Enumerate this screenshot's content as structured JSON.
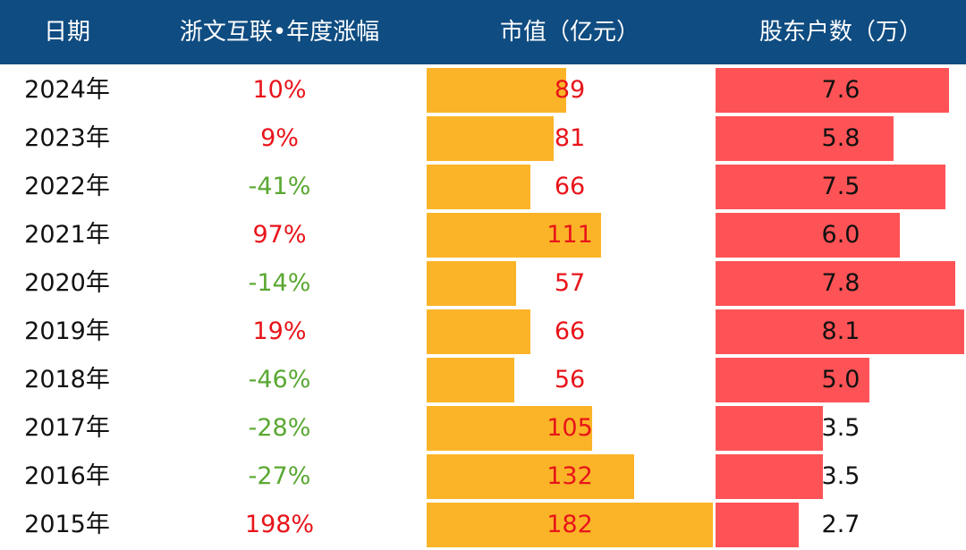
{
  "header": {
    "date": "日期",
    "pct": "浙文互联•年度涨幅",
    "cap": "市值（亿元）",
    "holders": "股东户数（万）"
  },
  "colors": {
    "header_bg": "#0f4c81",
    "cap_bar": "#fbb427",
    "holders_bar": "#fe5356",
    "up": "#e8141a",
    "down": "#5aa832"
  },
  "chart_data": {
    "type": "table",
    "columns": [
      "日期",
      "浙文互联•年度涨幅",
      "市值（亿元）",
      "股东户数（万）"
    ],
    "rows": [
      {
        "date": "2024年",
        "pct": "10%",
        "cap": 89,
        "holders": 7.6
      },
      {
        "date": "2023年",
        "pct": "9%",
        "cap": 81,
        "holders": 5.8
      },
      {
        "date": "2022年",
        "pct": "-41%",
        "cap": 66,
        "holders": 7.5
      },
      {
        "date": "2021年",
        "pct": "97%",
        "cap": 111,
        "holders": 6.0
      },
      {
        "date": "2020年",
        "pct": "-14%",
        "cap": 57,
        "holders": 7.8
      },
      {
        "date": "2019年",
        "pct": "19%",
        "cap": 66,
        "holders": 8.1
      },
      {
        "date": "2018年",
        "pct": "-46%",
        "cap": 56,
        "holders": 5.0
      },
      {
        "date": "2017年",
        "pct": "-28%",
        "cap": 105,
        "holders": 3.5
      },
      {
        "date": "2016年",
        "pct": "-27%",
        "cap": 132,
        "holders": 3.5
      },
      {
        "date": "2015年",
        "pct": "198%",
        "cap": 182,
        "holders": 2.7
      }
    ]
  }
}
